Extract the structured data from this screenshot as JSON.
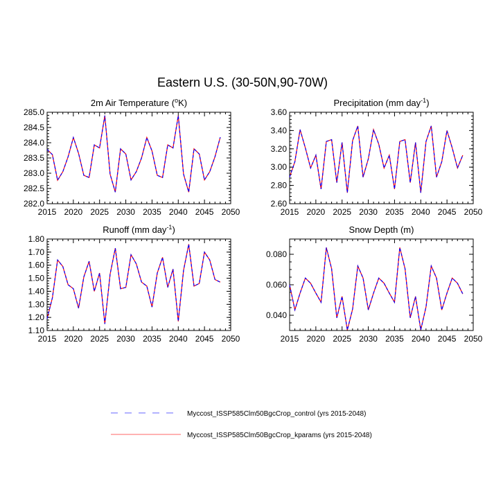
{
  "title": "Eastern U.S. (30-50N,90-70W)",
  "legend": [
    {
      "label": "Myccost_ISSP585Clm50BgcCrop_control (yrs 2015-2048)",
      "color": "#0000ff",
      "style": "dashed"
    },
    {
      "label": "Myccost_ISSP585Clm50BgcCrop_kparams (yrs 2015-2048)",
      "color": "#ff0000",
      "style": "solid"
    }
  ],
  "chart_data": [
    {
      "type": "line",
      "title": "2m Air Temperature (",
      "title_sup": "o",
      "title_end": "K)",
      "x": [
        2015,
        2016,
        2017,
        2018,
        2019,
        2020,
        2021,
        2022,
        2023,
        2024,
        2025,
        2026,
        2027,
        2028,
        2029,
        2030,
        2031,
        2032,
        2033,
        2034,
        2035,
        2036,
        2037,
        2038,
        2039,
        2040,
        2041,
        2042,
        2043,
        2044,
        2045,
        2046,
        2047,
        2048
      ],
      "xlim": [
        2015,
        2050
      ],
      "xticks": [
        "2015",
        "2020",
        "2025",
        "2030",
        "2035",
        "2040",
        "2045",
        "2050"
      ],
      "ylim": [
        282.0,
        285.0
      ],
      "yticks": [
        "282.0",
        "282.5",
        "283.0",
        "283.5",
        "284.0",
        "284.5",
        "285.0"
      ],
      "yminor": 0.1,
      "series": [
        {
          "name": "control",
          "values": [
            283.78,
            283.61,
            282.77,
            283.05,
            283.54,
            284.17,
            283.65,
            282.93,
            282.86,
            283.93,
            283.83,
            284.89,
            282.97,
            282.38,
            283.8,
            283.63,
            282.78,
            283.05,
            283.5,
            284.17,
            283.73,
            282.93,
            282.86,
            283.93,
            283.83,
            284.89,
            282.97,
            282.38,
            283.8,
            283.63,
            282.78,
            283.05,
            283.54,
            284.18
          ]
        },
        {
          "name": "kparams",
          "values": [
            283.78,
            283.61,
            282.77,
            283.05,
            283.54,
            284.17,
            283.65,
            282.93,
            282.86,
            283.93,
            283.83,
            284.89,
            282.97,
            282.38,
            283.8,
            283.63,
            282.78,
            283.05,
            283.5,
            284.17,
            283.73,
            282.93,
            282.86,
            283.93,
            283.83,
            284.89,
            282.97,
            282.38,
            283.8,
            283.63,
            282.78,
            283.05,
            283.54,
            284.18
          ]
        }
      ]
    },
    {
      "type": "line",
      "title": "Precipitation (mm day",
      "title_sup": "-1",
      "title_end": ")",
      "x": [
        2015,
        2016,
        2017,
        2018,
        2019,
        2020,
        2021,
        2022,
        2023,
        2024,
        2025,
        2026,
        2027,
        2028,
        2029,
        2030,
        2031,
        2032,
        2033,
        2034,
        2035,
        2036,
        2037,
        2038,
        2039,
        2040,
        2041,
        2042,
        2043,
        2044,
        2045,
        2046,
        2047,
        2048
      ],
      "xlim": [
        2015,
        2050
      ],
      "xticks": [
        "2015",
        "2020",
        "2025",
        "2030",
        "2035",
        "2040",
        "2045",
        "2050"
      ],
      "ylim": [
        2.6,
        3.6
      ],
      "yticks": [
        "2.60",
        "2.80",
        "3.00",
        "3.20",
        "3.40",
        "3.60"
      ],
      "yminor": 0.04,
      "series": [
        {
          "name": "control",
          "values": [
            2.89,
            3.06,
            3.41,
            3.21,
            2.99,
            3.13,
            2.76,
            3.28,
            3.3,
            2.83,
            3.27,
            2.72,
            3.29,
            3.45,
            2.89,
            3.09,
            3.41,
            3.25,
            2.99,
            3.13,
            2.76,
            3.28,
            3.3,
            2.83,
            3.27,
            2.72,
            3.28,
            3.45,
            2.89,
            3.06,
            3.4,
            3.21,
            2.99,
            3.13
          ]
        },
        {
          "name": "kparams",
          "values": [
            2.89,
            3.06,
            3.41,
            3.21,
            2.99,
            3.13,
            2.76,
            3.28,
            3.3,
            2.83,
            3.27,
            2.72,
            3.29,
            3.45,
            2.89,
            3.09,
            3.41,
            3.25,
            2.99,
            3.13,
            2.76,
            3.28,
            3.3,
            2.83,
            3.27,
            2.72,
            3.28,
            3.45,
            2.89,
            3.06,
            3.4,
            3.21,
            2.99,
            3.13
          ]
        }
      ]
    },
    {
      "type": "line",
      "title": "Runoff (mm day",
      "title_sup": "-1",
      "title_end": ")",
      "x": [
        2015,
        2016,
        2017,
        2018,
        2019,
        2020,
        2021,
        2022,
        2023,
        2024,
        2025,
        2026,
        2027,
        2028,
        2029,
        2030,
        2031,
        2032,
        2033,
        2034,
        2035,
        2036,
        2037,
        2038,
        2039,
        2040,
        2041,
        2042,
        2043,
        2044,
        2045,
        2046,
        2047,
        2048
      ],
      "xlim": [
        2015,
        2050
      ],
      "xticks": [
        "2015",
        "2020",
        "2025",
        "2030",
        "2035",
        "2040",
        "2045",
        "2050"
      ],
      "ylim": [
        1.1,
        1.8
      ],
      "yticks": [
        "1.10",
        "1.20",
        "1.30",
        "1.40",
        "1.50",
        "1.60",
        "1.70",
        "1.80"
      ],
      "yminor": 0.02,
      "series": [
        {
          "name": "control",
          "values": [
            1.19,
            1.35,
            1.64,
            1.59,
            1.45,
            1.42,
            1.27,
            1.51,
            1.63,
            1.4,
            1.54,
            1.15,
            1.53,
            1.73,
            1.42,
            1.43,
            1.68,
            1.61,
            1.47,
            1.44,
            1.28,
            1.54,
            1.66,
            1.43,
            1.57,
            1.17,
            1.56,
            1.76,
            1.44,
            1.46,
            1.7,
            1.64,
            1.49,
            1.47
          ]
        },
        {
          "name": "kparams",
          "values": [
            1.19,
            1.35,
            1.64,
            1.59,
            1.45,
            1.42,
            1.27,
            1.51,
            1.63,
            1.4,
            1.54,
            1.15,
            1.53,
            1.73,
            1.42,
            1.43,
            1.68,
            1.61,
            1.47,
            1.44,
            1.28,
            1.54,
            1.66,
            1.43,
            1.57,
            1.17,
            1.56,
            1.76,
            1.44,
            1.46,
            1.7,
            1.64,
            1.49,
            1.47
          ]
        }
      ]
    },
    {
      "type": "line",
      "title": "Snow Depth (m)",
      "title_sup": "",
      "title_end": "",
      "x": [
        2015,
        2016,
        2017,
        2018,
        2019,
        2020,
        2021,
        2022,
        2023,
        2024,
        2025,
        2026,
        2027,
        2028,
        2029,
        2030,
        2031,
        2032,
        2033,
        2034,
        2035,
        2036,
        2037,
        2038,
        2039,
        2040,
        2041,
        2042,
        2043,
        2044,
        2045,
        2046,
        2047,
        2048
      ],
      "xlim": [
        2015,
        2050
      ],
      "xticks": [
        "2015",
        "2020",
        "2025",
        "2030",
        "2035",
        "2040",
        "2045",
        "2050"
      ],
      "ylim": [
        0.03,
        0.09
      ],
      "yticks": [
        "0.040",
        "0.060",
        "0.080"
      ],
      "yminor": 0.005,
      "series": [
        {
          "name": "control",
          "values": [
            0.0599,
            0.0435,
            0.0545,
            0.0644,
            0.061,
            0.0545,
            0.0485,
            0.0844,
            0.0705,
            0.0383,
            0.0523,
            0.0303,
            0.044,
            0.0723,
            0.0644,
            0.0435,
            0.0545,
            0.0644,
            0.061,
            0.0545,
            0.0485,
            0.0844,
            0.0705,
            0.0383,
            0.0523,
            0.0303,
            0.0455,
            0.0723,
            0.0644,
            0.0435,
            0.0545,
            0.0644,
            0.061,
            0.054
          ]
        },
        {
          "name": "kparams",
          "values": [
            0.0599,
            0.0435,
            0.0545,
            0.0644,
            0.061,
            0.0545,
            0.0485,
            0.0844,
            0.0705,
            0.0383,
            0.0523,
            0.0303,
            0.044,
            0.0723,
            0.0644,
            0.0435,
            0.0545,
            0.0644,
            0.061,
            0.0545,
            0.0485,
            0.0844,
            0.0705,
            0.0383,
            0.0523,
            0.0303,
            0.0455,
            0.0723,
            0.0644,
            0.0435,
            0.0545,
            0.0644,
            0.061,
            0.054
          ]
        }
      ]
    }
  ]
}
